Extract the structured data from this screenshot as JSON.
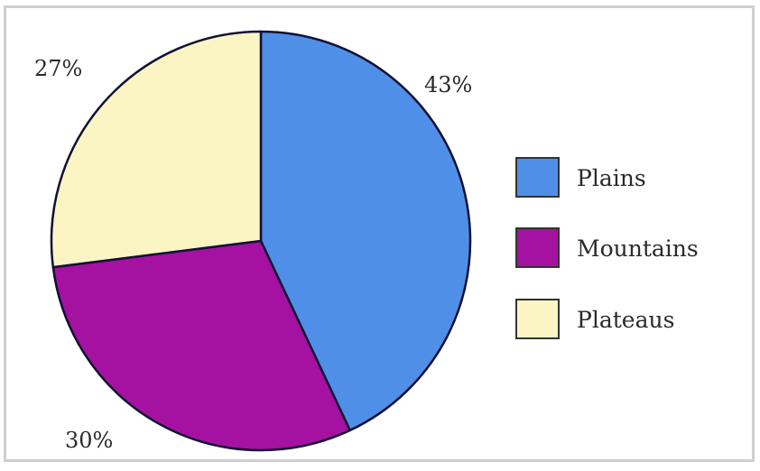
{
  "chart_data": {
    "type": "pie",
    "slices": [
      {
        "label": "Plains",
        "value": 43,
        "value_label": "43%",
        "color": "#4f8fe8"
      },
      {
        "label": "Mountains",
        "value": 30,
        "value_label": "30%",
        "color": "#a511a1"
      },
      {
        "label": "Plateaus",
        "value": 27,
        "value_label": "27%",
        "color": "#fbf5c3"
      }
    ],
    "title": "",
    "legend_position": "right",
    "slice_outline_color": "#111133"
  }
}
